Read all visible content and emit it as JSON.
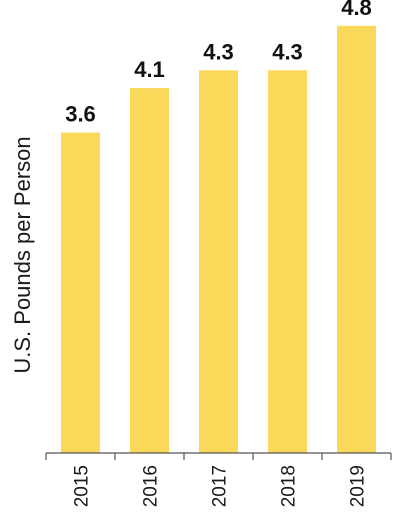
{
  "chart_data": {
    "type": "bar",
    "categories": [
      "2015",
      "2016",
      "2017",
      "2018",
      "2019"
    ],
    "values": [
      3.6,
      4.1,
      4.3,
      4.3,
      4.8
    ],
    "data_labels": [
      "3.6",
      "4.1",
      "4.3",
      "4.3",
      "4.8"
    ],
    "ylabel": "U.S. Pounds per Person",
    "ylim": [
      0,
      5.0
    ],
    "grid": false,
    "legend": "none",
    "bar_color": "#FAD85A",
    "axis_color": "#555555"
  }
}
